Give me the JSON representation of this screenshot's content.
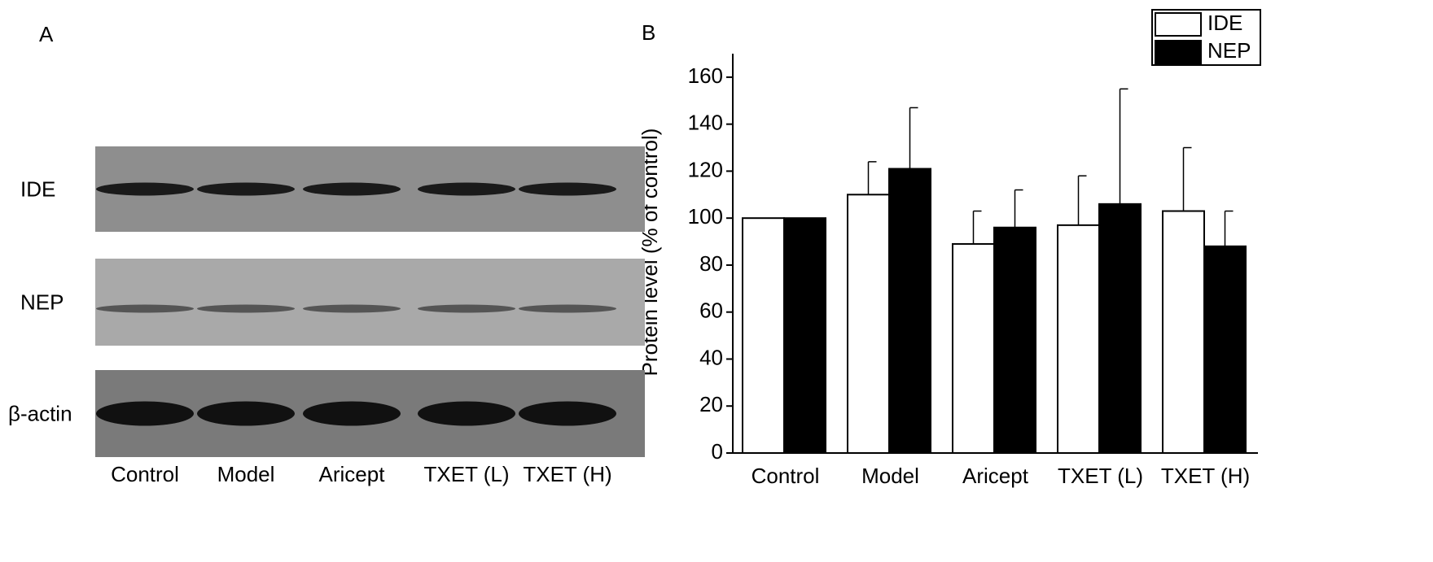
{
  "panel_a": {
    "label": "A",
    "rows": [
      "IDE",
      "NEP",
      "β-actin"
    ],
    "lanes": [
      "Control",
      "Model",
      "Aricept",
      "TXET (L)",
      "TXET (H)"
    ]
  },
  "chart_data": {
    "type": "bar",
    "panel_label": "B",
    "y_label": "Protein level (% of control)",
    "categories": [
      "Control",
      "Model",
      "Aricept",
      "TXET (L)",
      "TXET (H)"
    ],
    "series": [
      {
        "name": "IDE",
        "color": "#ffffff",
        "values": [
          100,
          110,
          89,
          97,
          103
        ],
        "errors": [
          0,
          14,
          14,
          21,
          27
        ]
      },
      {
        "name": "NEP",
        "color": "#000000",
        "values": [
          100,
          121,
          96,
          106,
          88
        ],
        "errors": [
          0,
          26,
          16,
          49,
          15
        ]
      }
    ],
    "ylim": [
      0,
      170
    ],
    "yticks": [
      0,
      20,
      40,
      60,
      80,
      100,
      120,
      140,
      160
    ],
    "legend": "top-right",
    "grid": false
  }
}
